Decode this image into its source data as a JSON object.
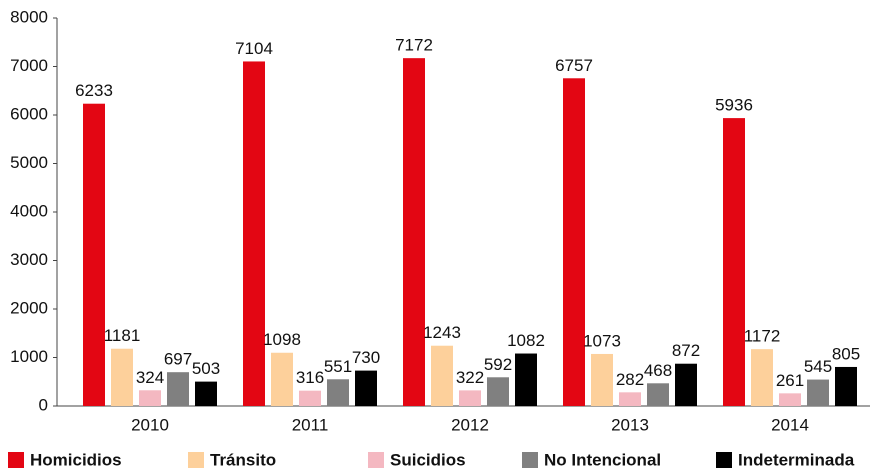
{
  "chart_data": {
    "type": "bar",
    "categories": [
      "2010",
      "2011",
      "2012",
      "2013",
      "2014"
    ],
    "series": [
      {
        "name": "Homicidios",
        "color": "#e30613",
        "values": [
          6233,
          7104,
          7172,
          6757,
          5936
        ]
      },
      {
        "name": "Tránsito",
        "color": "#fdd09b",
        "values": [
          1181,
          1098,
          1243,
          1073,
          1172
        ]
      },
      {
        "name": "Suicidios",
        "color": "#f4b8c1",
        "values": [
          324,
          316,
          322,
          282,
          261
        ]
      },
      {
        "name": "No Intencional",
        "color": "#808080",
        "values": [
          697,
          551,
          592,
          468,
          545
        ]
      },
      {
        "name": "Indeterminada",
        "color": "#000000",
        "values": [
          503,
          730,
          1082,
          872,
          805
        ]
      }
    ],
    "ylim": [
      0,
      8000
    ],
    "yticks": [
      0,
      1000,
      2000,
      3000,
      4000,
      5000,
      6000,
      7000,
      8000
    ],
    "grid": false,
    "legend": "bottom"
  }
}
